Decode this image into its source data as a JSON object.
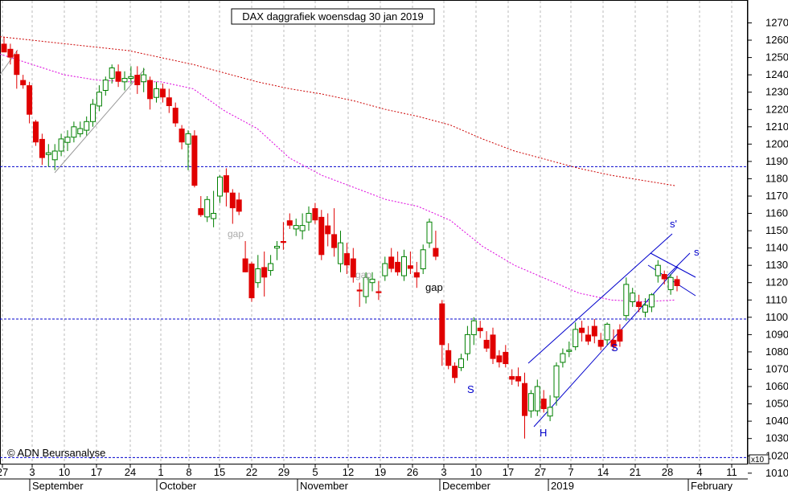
{
  "title": "DAX daggrafiek woensdag 30 jan 2019",
  "copyright": "© ADN Beursanalyse",
  "scale_note": "x10",
  "colors": {
    "up": "#008000",
    "down": "#e00000",
    "ma_long": "#cc0000",
    "ma_short": "#dd00dd",
    "pattern": "#0000cc",
    "grid": "#bbbbbb"
  },
  "annotations": {
    "gap1": "gap",
    "gap2": "gap",
    "gap3": "gap",
    "s_left": "S",
    "h": "H",
    "s_right": "S",
    "s_prime": "s'",
    "s_small": "s"
  },
  "chart_data": {
    "type": "candlestick",
    "title": "DAX daggrafiek woensdag 30 jan 2019",
    "y_axis_side": "right",
    "ylim": [
      1010,
      1280
    ],
    "y_ticks": [
      1010,
      1020,
      1030,
      1040,
      1050,
      1060,
      1070,
      1080,
      1090,
      1100,
      1110,
      1120,
      1130,
      1140,
      1150,
      1160,
      1170,
      1180,
      1190,
      1200,
      1210,
      1220,
      1230,
      1240,
      1250,
      1260,
      1270
    ],
    "x_day_ticks": [
      "27",
      "3",
      "10",
      "17",
      "24",
      "1",
      "8",
      "15",
      "22",
      "29",
      "5",
      "12",
      "19",
      "26",
      "3",
      "10",
      "17",
      "27",
      "7",
      "14",
      "21",
      "28",
      "4",
      "11"
    ],
    "x_month_labels": [
      "September",
      "October",
      "November",
      "December",
      "2019",
      "February"
    ],
    "horizontal_lines": [
      1187,
      1099,
      1019
    ],
    "candles": [
      [
        1258,
        1262,
        1254,
        1253
      ],
      [
        1255,
        1258,
        1246,
        1250
      ],
      [
        1252,
        1254,
        1232,
        1240
      ],
      [
        1237,
        1240,
        1232,
        1234
      ],
      [
        1234,
        1236,
        1212,
        1217
      ],
      [
        1213,
        1214,
        1199,
        1201
      ],
      [
        1203,
        1206,
        1188,
        1192
      ],
      [
        1194,
        1200,
        1187,
        1195
      ],
      [
        1191,
        1200,
        1185,
        1196
      ],
      [
        1196,
        1206,
        1193,
        1203
      ],
      [
        1201,
        1208,
        1196,
        1204
      ],
      [
        1204,
        1213,
        1201,
        1210
      ],
      [
        1206,
        1213,
        1204,
        1209
      ],
      [
        1208,
        1216,
        1205,
        1213
      ],
      [
        1213,
        1226,
        1210,
        1223
      ],
      [
        1222,
        1234,
        1219,
        1230
      ],
      [
        1231,
        1239,
        1228,
        1237
      ],
      [
        1238,
        1246,
        1235,
        1244
      ],
      [
        1242,
        1246,
        1233,
        1236
      ],
      [
        1236,
        1242,
        1231,
        1238
      ],
      [
        1238,
        1245,
        1235,
        1239
      ],
      [
        1240,
        1245,
        1229,
        1234
      ],
      [
        1236,
        1244,
        1230,
        1240
      ],
      [
        1237,
        1239,
        1220,
        1226
      ],
      [
        1227,
        1236,
        1224,
        1232
      ],
      [
        1232,
        1235,
        1224,
        1227
      ],
      [
        1227,
        1232,
        1218,
        1222
      ],
      [
        1221,
        1224,
        1210,
        1212
      ],
      [
        1209,
        1211,
        1197,
        1201
      ],
      [
        1200,
        1208,
        1185,
        1206
      ],
      [
        1205,
        1208,
        1175,
        1176
      ],
      [
        1163,
        1170,
        1158,
        1159
      ],
      [
        1158,
        1170,
        1155,
        1168
      ],
      [
        1157,
        1173,
        1152,
        1160
      ],
      [
        1170,
        1182,
        1166,
        1181
      ],
      [
        1182,
        1186,
        1164,
        1172
      ],
      [
        1172,
        1174,
        1154,
        1163
      ],
      [
        1168,
        1172,
        1159,
        1161
      ],
      [
        1134,
        1144,
        1126,
        1126
      ],
      [
        1131,
        1132,
        1109,
        1111
      ],
      [
        1120,
        1136,
        1117,
        1128
      ],
      [
        1129,
        1138,
        1112,
        1123
      ],
      [
        1127,
        1136,
        1124,
        1131
      ],
      [
        1140,
        1144,
        1133,
        1141
      ],
      [
        1144,
        1155,
        1139,
        1143
      ],
      [
        1156,
        1160,
        1151,
        1153
      ],
      [
        1151,
        1157,
        1147,
        1153
      ],
      [
        1150,
        1160,
        1145,
        1153
      ],
      [
        1155,
        1164,
        1150,
        1160
      ],
      [
        1163,
        1166,
        1154,
        1156
      ],
      [
        1158,
        1162,
        1133,
        1136
      ],
      [
        1153,
        1160,
        1141,
        1148
      ],
      [
        1148,
        1163,
        1135,
        1140
      ],
      [
        1131,
        1150,
        1126,
        1143
      ],
      [
        1137,
        1143,
        1125,
        1130
      ],
      [
        1134,
        1140,
        1120,
        1123
      ],
      [
        1116,
        1120,
        1106,
        1115
      ],
      [
        1112,
        1126,
        1108,
        1123
      ],
      [
        1120,
        1126,
        1115,
        1122
      ],
      [
        1115,
        1121,
        1110,
        1114
      ],
      [
        1124,
        1135,
        1121,
        1131
      ],
      [
        1135,
        1140,
        1126,
        1128
      ],
      [
        1132,
        1138,
        1124,
        1126
      ],
      [
        1124,
        1139,
        1121,
        1135
      ],
      [
        1130,
        1138,
        1125,
        1128
      ],
      [
        1126,
        1132,
        1117,
        1123
      ],
      [
        1128,
        1142,
        1125,
        1139
      ],
      [
        1143,
        1157,
        1140,
        1155
      ],
      [
        1140,
        1150,
        1133,
        1135
      ],
      [
        1108,
        1110,
        1072,
        1084
      ],
      [
        1081,
        1085,
        1070,
        1072
      ],
      [
        1072,
        1074,
        1062,
        1065
      ],
      [
        1071,
        1079,
        1069,
        1076
      ],
      [
        1079,
        1095,
        1075,
        1090
      ],
      [
        1090,
        1100,
        1084,
        1098
      ],
      [
        1094,
        1098,
        1088,
        1092
      ],
      [
        1087,
        1092,
        1080,
        1082
      ],
      [
        1090,
        1094,
        1073,
        1076
      ],
      [
        1078,
        1081,
        1071,
        1074
      ],
      [
        1080,
        1084,
        1071,
        1073
      ],
      [
        1066,
        1070,
        1061,
        1064
      ],
      [
        1066,
        1071,
        1060,
        1063
      ],
      [
        1062,
        1068,
        1030,
        1043
      ],
      [
        1046,
        1058,
        1042,
        1056
      ],
      [
        1046,
        1064,
        1043,
        1060
      ],
      [
        1053,
        1058,
        1045,
        1047
      ],
      [
        1043,
        1055,
        1040,
        1048
      ],
      [
        1054,
        1074,
        1049,
        1072
      ],
      [
        1074,
        1082,
        1071,
        1079
      ],
      [
        1081,
        1086,
        1077,
        1081
      ],
      [
        1083,
        1097,
        1081,
        1093
      ],
      [
        1094,
        1098,
        1086,
        1091
      ],
      [
        1090,
        1095,
        1084,
        1086
      ],
      [
        1095,
        1099,
        1085,
        1089
      ],
      [
        1087,
        1091,
        1081,
        1083
      ],
      [
        1087,
        1097,
        1084,
        1096
      ],
      [
        1087,
        1093,
        1081,
        1083
      ],
      [
        1093,
        1096,
        1083,
        1086
      ],
      [
        1101,
        1123,
        1098,
        1119
      ],
      [
        1109,
        1117,
        1106,
        1114
      ],
      [
        1109,
        1113,
        1103,
        1106
      ],
      [
        1103,
        1111,
        1100,
        1107
      ],
      [
        1106,
        1114,
        1103,
        1113
      ],
      [
        1124,
        1133,
        1120,
        1130
      ],
      [
        1125,
        1127,
        1119,
        1122
      ],
      [
        1116,
        1125,
        1113,
        1123
      ],
      [
        1122,
        1124,
        1115,
        1118
      ]
    ],
    "series": [
      {
        "name": "",
        "values": [
          [
            0,
            1262
          ],
          [
            40,
            1260
          ],
          [
            80,
            1258
          ],
          [
            120,
            1256
          ],
          [
            160,
            1254
          ],
          [
            200,
            1250
          ],
          [
            240,
            1246
          ],
          [
            280,
            1241
          ],
          [
            320,
            1236
          ],
          [
            360,
            1232
          ],
          [
            400,
            1229
          ],
          [
            440,
            1225
          ],
          [
            480,
            1220
          ],
          [
            520,
            1216
          ],
          [
            560,
            1211
          ],
          [
            600,
            1203
          ],
          [
            640,
            1196
          ],
          [
            680,
            1191
          ],
          [
            720,
            1186
          ],
          [
            760,
            1182
          ],
          [
            800,
            1179
          ],
          [
            840,
            1176
          ]
        ]
      },
      {
        "name": "",
        "values": [
          [
            0,
            1252
          ],
          [
            40,
            1246
          ],
          [
            80,
            1240
          ],
          [
            120,
            1237
          ],
          [
            160,
            1236
          ],
          [
            200,
            1236
          ],
          [
            240,
            1232
          ],
          [
            280,
            1219
          ],
          [
            320,
            1209
          ],
          [
            360,
            1192
          ],
          [
            400,
            1182
          ],
          [
            440,
            1175
          ],
          [
            480,
            1168
          ],
          [
            520,
            1164
          ],
          [
            560,
            1156
          ],
          [
            600,
            1141
          ],
          [
            640,
            1130
          ],
          [
            680,
            1122
          ],
          [
            720,
            1114
          ],
          [
            760,
            1110
          ],
          [
            800,
            1109
          ],
          [
            840,
            1110
          ]
        ]
      }
    ]
  }
}
